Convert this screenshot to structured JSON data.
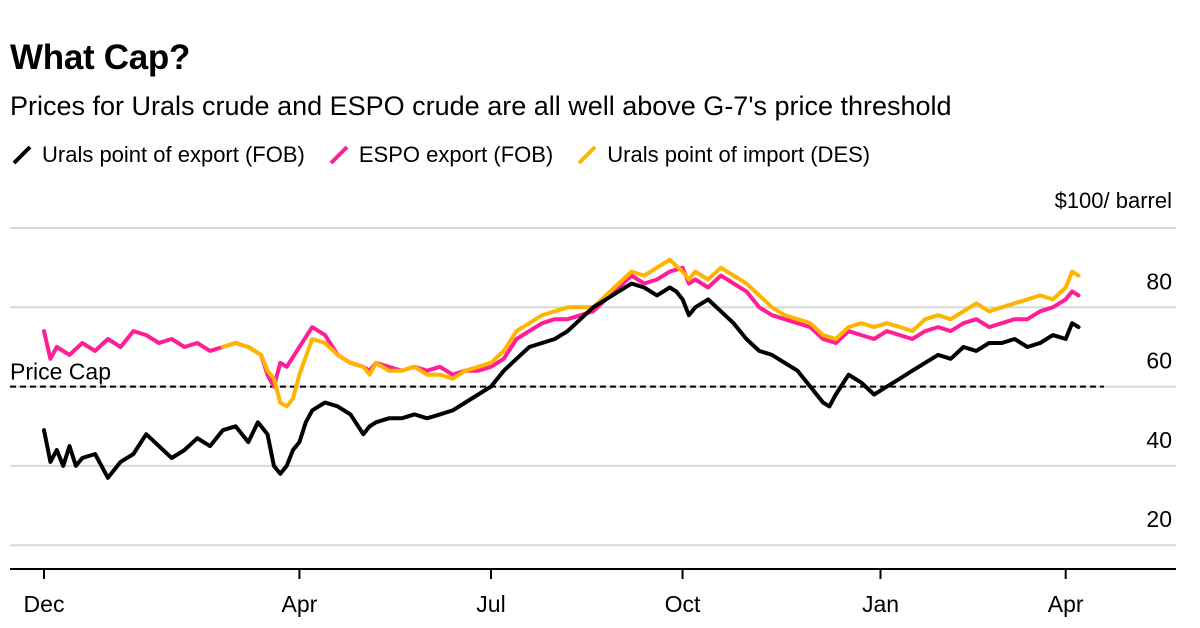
{
  "chart_data": {
    "type": "line",
    "title": "What Cap?",
    "subtitle": "Prices for Urals crude and ESPO crude are all well above G-7's price threshold",
    "ylabel": "$100/ barrel",
    "ylim": [
      14,
      100
    ],
    "yticks": [
      20,
      40,
      60,
      80
    ],
    "xlim": [
      0,
      16.6
    ],
    "xticks": [
      {
        "label": "Dec",
        "x": 0
      },
      {
        "label": "Apr",
        "x": 4
      },
      {
        "label": "Jul",
        "x": 7
      },
      {
        "label": "Oct",
        "x": 10
      },
      {
        "label": "Jan",
        "x": 13.1
      },
      {
        "label": "Apr",
        "x": 16
      }
    ],
    "grid": true,
    "legend_position": "top-left",
    "reference_line": {
      "label": "Price Cap",
      "value": 60,
      "style": "dashed"
    },
    "series": [
      {
        "name": "Urals point of export (FOB)",
        "color": "#000000",
        "x": [
          0,
          0.1,
          0.2,
          0.3,
          0.4,
          0.5,
          0.6,
          0.8,
          1.0,
          1.2,
          1.4,
          1.6,
          1.8,
          2.0,
          2.2,
          2.4,
          2.6,
          2.8,
          3.0,
          3.2,
          3.35,
          3.5,
          3.6,
          3.7,
          3.8,
          3.9,
          4.0,
          4.1,
          4.2,
          4.4,
          4.6,
          4.8,
          5.0,
          5.1,
          5.2,
          5.4,
          5.6,
          5.8,
          6.0,
          6.2,
          6.4,
          6.6,
          6.8,
          7.0,
          7.2,
          7.4,
          7.6,
          7.8,
          8.0,
          8.2,
          8.4,
          8.6,
          8.8,
          9.0,
          9.2,
          9.4,
          9.6,
          9.8,
          9.9,
          10.0,
          10.1,
          10.2,
          10.4,
          10.6,
          10.8,
          11.0,
          11.2,
          11.4,
          11.6,
          11.8,
          12.0,
          12.2,
          12.3,
          12.4,
          12.6,
          12.8,
          13.0,
          13.2,
          13.4,
          13.6,
          13.8,
          14.0,
          14.2,
          14.4,
          14.6,
          14.8,
          15.0,
          15.2,
          15.4,
          15.6,
          15.8,
          16.0,
          16.1,
          16.2
        ],
        "values": [
          49,
          41,
          44,
          40,
          45,
          40,
          42,
          43,
          37,
          41,
          43,
          48,
          45,
          42,
          44,
          47,
          45,
          49,
          50,
          46,
          51,
          48,
          40,
          38,
          40,
          44,
          46,
          51,
          54,
          56,
          55,
          53,
          48,
          50,
          51,
          52,
          52,
          53,
          52,
          53,
          54,
          56,
          58,
          60,
          64,
          67,
          70,
          71,
          72,
          74,
          77,
          80,
          82,
          84,
          86,
          85,
          83,
          85,
          84,
          82,
          78,
          80,
          82,
          79,
          76,
          72,
          69,
          68,
          66,
          64,
          60,
          56,
          55,
          58,
          63,
          61,
          58,
          60,
          62,
          64,
          66,
          68,
          67,
          70,
          69,
          71,
          71,
          72,
          70,
          71,
          73,
          72,
          76,
          75
        ]
      },
      {
        "name": "ESPO export (FOB)",
        "color": "#ff1e96",
        "x": [
          0,
          0.1,
          0.2,
          0.4,
          0.6,
          0.8,
          1.0,
          1.2,
          1.4,
          1.6,
          1.8,
          2.0,
          2.2,
          2.4,
          2.6,
          2.8,
          3.0,
          3.2,
          3.4,
          3.5,
          3.6,
          3.7,
          3.8,
          4.0,
          4.2,
          4.4,
          4.6,
          4.8,
          5.0,
          5.1,
          5.2,
          5.4,
          5.6,
          5.8,
          6.0,
          6.2,
          6.4,
          6.6,
          6.8,
          7.0,
          7.2,
          7.4,
          7.6,
          7.8,
          8.0,
          8.2,
          8.4,
          8.6,
          8.8,
          9.0,
          9.2,
          9.4,
          9.6,
          9.8,
          10.0,
          10.1,
          10.2,
          10.4,
          10.6,
          10.8,
          11.0,
          11.2,
          11.4,
          11.6,
          11.8,
          12.0,
          12.2,
          12.4,
          12.6,
          12.8,
          13.0,
          13.2,
          13.4,
          13.6,
          13.8,
          14.0,
          14.2,
          14.4,
          14.6,
          14.8,
          15.0,
          15.2,
          15.4,
          15.6,
          15.8,
          16.0,
          16.1,
          16.2
        ],
        "values": [
          74,
          67,
          70,
          68,
          71,
          69,
          72,
          70,
          74,
          73,
          71,
          72,
          70,
          71,
          69,
          70,
          71,
          70,
          68,
          63,
          60,
          66,
          65,
          70,
          75,
          73,
          68,
          66,
          65,
          64,
          66,
          65,
          64,
          65,
          64,
          65,
          63,
          64,
          64,
          65,
          67,
          72,
          74,
          76,
          77,
          77,
          78,
          79,
          82,
          85,
          88,
          86,
          87,
          89,
          90,
          86,
          87,
          85,
          88,
          86,
          84,
          80,
          78,
          77,
          76,
          75,
          72,
          71,
          74,
          73,
          72,
          74,
          73,
          72,
          74,
          75,
          74,
          76,
          77,
          75,
          76,
          77,
          77,
          79,
          80,
          82,
          84,
          83
        ]
      },
      {
        "name": "Urals point of import (DES)",
        "color": "#ffb400",
        "x": [
          2.8,
          3.0,
          3.2,
          3.4,
          3.5,
          3.6,
          3.7,
          3.8,
          3.9,
          4.0,
          4.2,
          4.4,
          4.6,
          4.8,
          5.0,
          5.1,
          5.2,
          5.4,
          5.6,
          5.8,
          6.0,
          6.2,
          6.4,
          6.6,
          6.8,
          7.0,
          7.2,
          7.4,
          7.6,
          7.8,
          8.0,
          8.2,
          8.4,
          8.6,
          8.8,
          9.0,
          9.2,
          9.4,
          9.6,
          9.8,
          10.0,
          10.1,
          10.2,
          10.4,
          10.6,
          10.8,
          11.0,
          11.2,
          11.4,
          11.6,
          11.8,
          12.0,
          12.2,
          12.4,
          12.6,
          12.8,
          13.0,
          13.2,
          13.4,
          13.6,
          13.8,
          14.0,
          14.2,
          14.4,
          14.6,
          14.8,
          15.0,
          15.2,
          15.4,
          15.6,
          15.8,
          16.0,
          16.1,
          16.2
        ],
        "values": [
          70,
          71,
          70,
          68,
          64,
          62,
          56,
          55,
          57,
          63,
          72,
          71,
          68,
          66,
          65,
          63,
          66,
          64,
          64,
          65,
          63,
          63,
          62,
          64,
          65,
          66,
          69,
          74,
          76,
          78,
          79,
          80,
          80,
          80,
          83,
          86,
          89,
          88,
          90,
          92,
          89,
          87,
          89,
          87,
          90,
          88,
          86,
          83,
          80,
          78,
          77,
          76,
          73,
          72,
          75,
          76,
          75,
          76,
          75,
          74,
          77,
          78,
          77,
          79,
          81,
          79,
          80,
          81,
          82,
          83,
          82,
          85,
          89,
          88
        ]
      }
    ]
  }
}
